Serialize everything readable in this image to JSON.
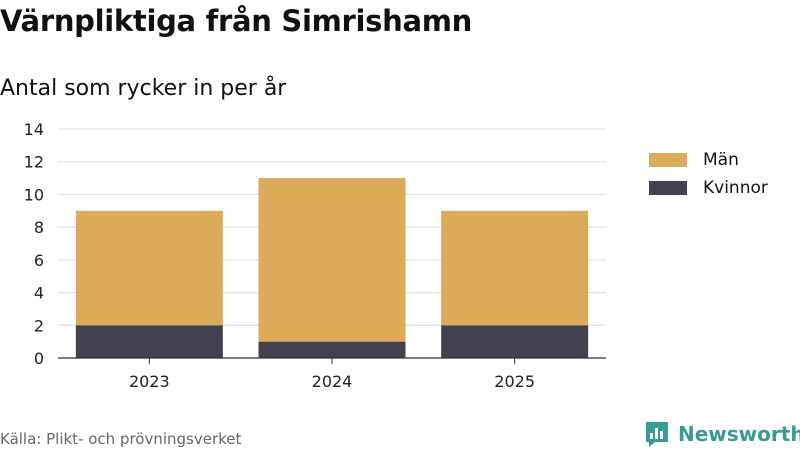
{
  "header": {
    "title": "Värnpliktiga från Simrishamn",
    "subtitle": "Antal som rycker in per år"
  },
  "chart_data": {
    "type": "bar",
    "stacked": true,
    "categories": [
      "2023",
      "2024",
      "2025"
    ],
    "series": [
      {
        "name": "Kvinnor",
        "values": [
          2,
          1,
          2
        ],
        "color": "#43404f"
      },
      {
        "name": "Män",
        "values": [
          7,
          10,
          7
        ],
        "color": "#dbab5a"
      }
    ],
    "ylim": [
      0,
      14
    ],
    "yticks": [
      0,
      2,
      4,
      6,
      8,
      10,
      12,
      14
    ],
    "grid": true,
    "legend_position": "right"
  },
  "legend": {
    "items": [
      {
        "label": "Män",
        "color": "#dbab5a"
      },
      {
        "label": "Kvinnor",
        "color": "#43404f"
      }
    ]
  },
  "footer": {
    "source": "Källa: Plikt- och prövningsverket",
    "brand": "Newsworthy",
    "brand_color": "#3a9a94"
  }
}
